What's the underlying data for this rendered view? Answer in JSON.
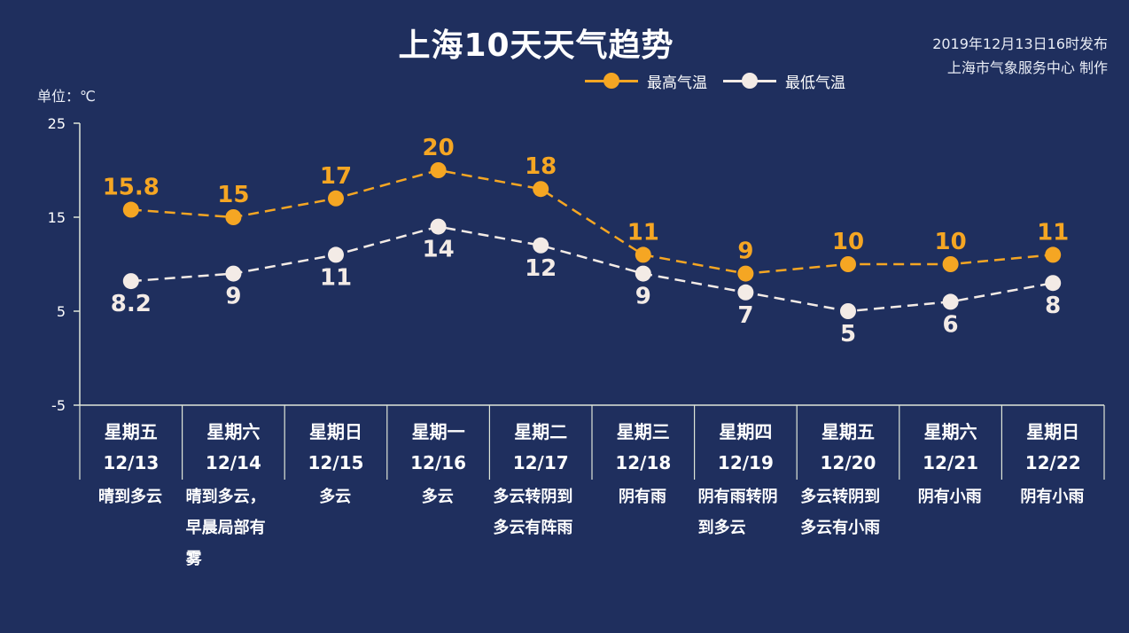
{
  "title": "上海10天天气趋势",
  "publish": {
    "line1": "2019年12月13日16时发布",
    "line2": "上海市气象服务中心 制作"
  },
  "unit_label": "单位：℃",
  "colors": {
    "background": "#1f2f5e",
    "high": "#f5a623",
    "low": "#f3ebe6",
    "axis": "#dfe6d8"
  },
  "chart_data": {
    "type": "line",
    "ylim": [
      -5,
      25
    ],
    "yticks": [
      "25",
      "15",
      "5",
      "-5"
    ],
    "ytick_values": [
      25,
      15,
      5,
      -5
    ],
    "legend": "top-right",
    "days": [
      {
        "weekday": "星期五",
        "date": "12/13",
        "condition": "晴到多云"
      },
      {
        "weekday": "星期六",
        "date": "12/14",
        "condition": "晴到多云，早晨局部有雾"
      },
      {
        "weekday": "星期日",
        "date": "12/15",
        "condition": "多云"
      },
      {
        "weekday": "星期一",
        "date": "12/16",
        "condition": "多云"
      },
      {
        "weekday": "星期二",
        "date": "12/17",
        "condition": "多云转阴到多云有阵雨"
      },
      {
        "weekday": "星期三",
        "date": "12/18",
        "condition": "阴有雨"
      },
      {
        "weekday": "星期四",
        "date": "12/19",
        "condition": "阴有雨转阴到多云"
      },
      {
        "weekday": "星期五",
        "date": "12/20",
        "condition": "多云转阴到多云有小雨"
      },
      {
        "weekday": "星期六",
        "date": "12/21",
        "condition": "阴有小雨"
      },
      {
        "weekday": "星期日",
        "date": "12/22",
        "condition": "阴有小雨"
      }
    ],
    "series": [
      {
        "name": "最高气温",
        "values": [
          15.8,
          15,
          17,
          20,
          18,
          11,
          9,
          10,
          10,
          11
        ],
        "labels": [
          "15.8",
          "15",
          "17",
          "20",
          "18",
          "11",
          "9",
          "10",
          "10",
          "11"
        ]
      },
      {
        "name": "最低气温",
        "values": [
          8.2,
          9,
          11,
          14,
          12,
          9,
          7,
          5,
          6,
          8
        ],
        "labels": [
          "8.2",
          "9",
          "11",
          "14",
          "12",
          "9",
          "7",
          "5",
          "6",
          "8"
        ]
      }
    ]
  }
}
